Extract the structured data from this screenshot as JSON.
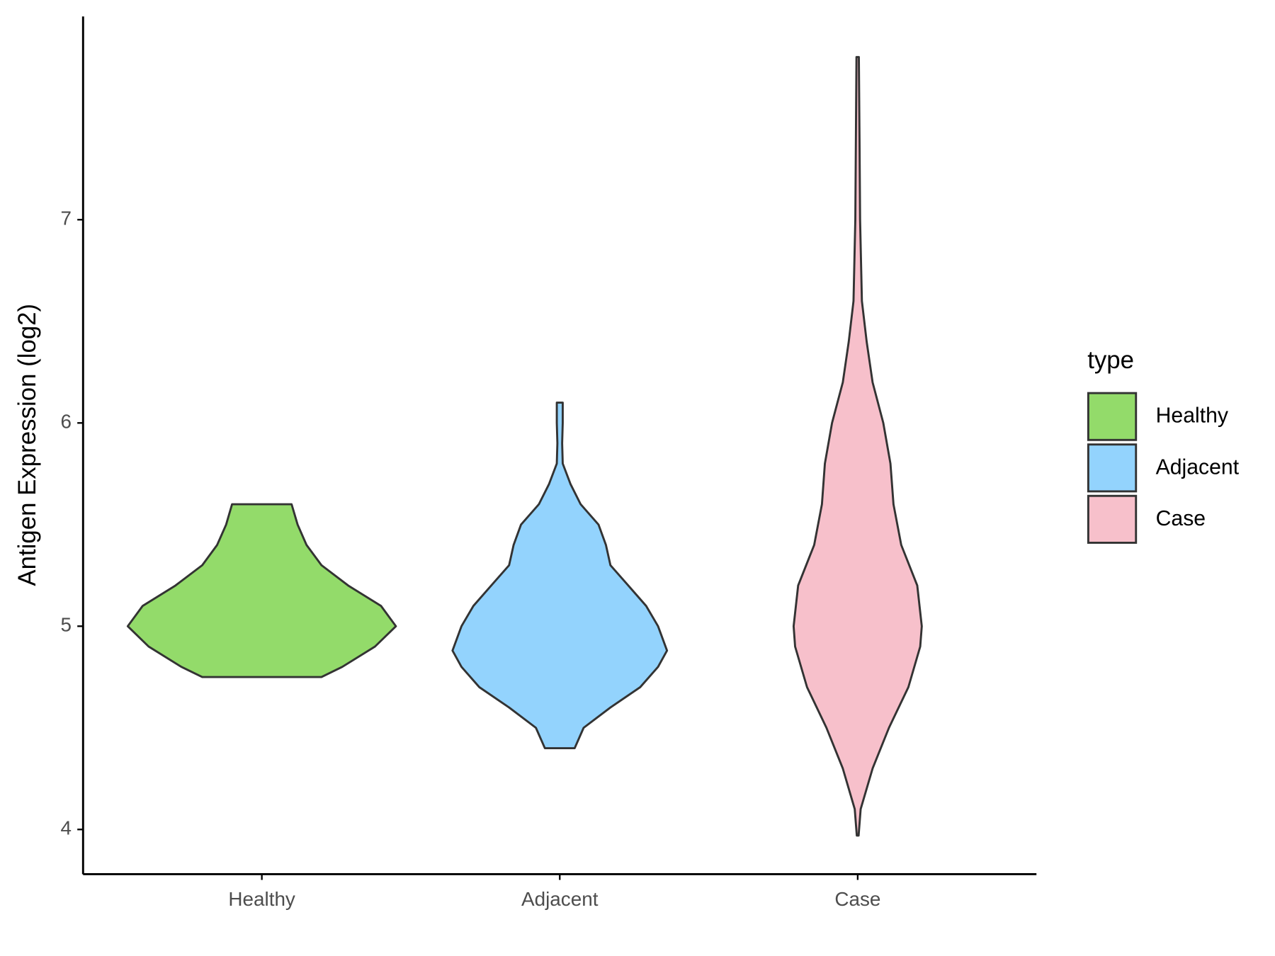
{
  "chart_data": {
    "type": "violin",
    "y_label": "Antigen Expression (log2)",
    "categories": [
      "Healthy",
      "Adjacent",
      "Case"
    ],
    "legend_title": "type",
    "legend": "right",
    "ylim": [
      3.78,
      8.0
    ],
    "yticks": [
      4,
      5,
      6,
      7
    ],
    "series": [
      {
        "name": "Healthy",
        "color": "#93DB6A",
        "y": [
          4.75,
          4.8,
          4.9,
          5.0,
          5.1,
          5.2,
          5.3,
          5.4,
          5.5,
          5.6
        ],
        "density": [
          0.2,
          0.27,
          0.38,
          0.45,
          0.4,
          0.29,
          0.2,
          0.15,
          0.12,
          0.1
        ]
      },
      {
        "name": "Adjacent",
        "color": "#93D3FD",
        "y": [
          4.4,
          4.5,
          4.6,
          4.7,
          4.8,
          4.88,
          5.0,
          5.1,
          5.2,
          5.3,
          5.4,
          5.5,
          5.6,
          5.7,
          5.8,
          5.9,
          6.0,
          6.1
        ],
        "density": [
          0.05,
          0.08,
          0.17,
          0.27,
          0.33,
          0.36,
          0.33,
          0.29,
          0.23,
          0.17,
          0.155,
          0.13,
          0.07,
          0.036,
          0.01,
          0.008,
          0.01,
          0.01
        ]
      },
      {
        "name": "Case",
        "color": "#F7C0CB",
        "y": [
          3.97,
          4.1,
          4.3,
          4.5,
          4.7,
          4.9,
          5.0,
          5.2,
          5.4,
          5.6,
          5.8,
          6.0,
          6.2,
          6.4,
          6.6,
          7.0,
          7.4,
          7.8
        ],
        "density": [
          0.003,
          0.01,
          0.05,
          0.105,
          0.17,
          0.21,
          0.215,
          0.2,
          0.146,
          0.12,
          0.11,
          0.086,
          0.05,
          0.03,
          0.014,
          0.008,
          0.006,
          0.004
        ]
      }
    ]
  }
}
